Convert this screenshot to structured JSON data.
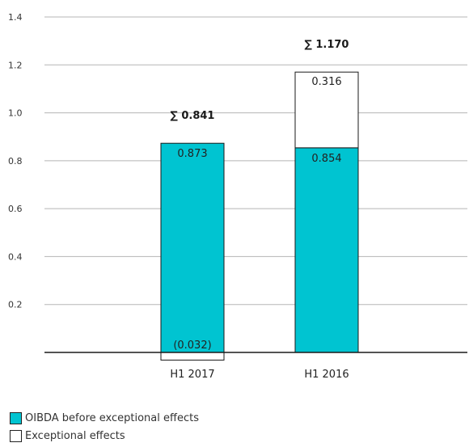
{
  "chart_data": {
    "type": "bar",
    "stacked": true,
    "categories": [
      "H1 2017",
      "H1 2016"
    ],
    "series": [
      {
        "name": "OIBDA before exceptional effects",
        "color": "#00c4d1",
        "values": [
          0.873,
          0.854
        ],
        "labels": [
          "0.873",
          "0.854"
        ]
      },
      {
        "name": "Exceptional effects",
        "color": "#ffffff",
        "values": [
          -0.032,
          0.316
        ],
        "labels": [
          "(0.032)",
          "0.316"
        ]
      }
    ],
    "totals": [
      "∑ 0.841",
      "∑ 1.170"
    ],
    "y_ticks": [
      "0.2",
      "0.4",
      "0.6",
      "0.8",
      "1.0",
      "1.2",
      "1.4"
    ],
    "ylim": [
      0,
      1.4
    ],
    "grid": true,
    "legend_position": "bottom-left"
  }
}
